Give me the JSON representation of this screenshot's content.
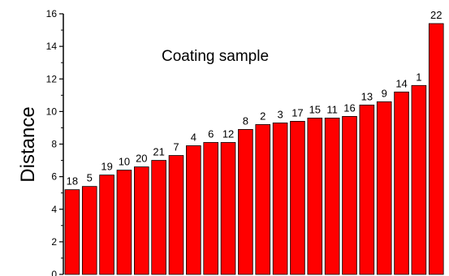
{
  "chart_data": {
    "type": "bar",
    "ylabel": "Distance",
    "xlabel": "",
    "annotation": "Coating sample",
    "ylim": [
      0,
      16
    ],
    "yticks": [
      "0",
      "2",
      "4",
      "6",
      "8",
      "10",
      "12",
      "14",
      "16"
    ],
    "bar_color": "#FF0000",
    "categories": [
      "18",
      "5",
      "19",
      "10",
      "20",
      "21",
      "7",
      "4",
      "6",
      "12",
      "8",
      "2",
      "3",
      "17",
      "15",
      "11",
      "16",
      "13",
      "9",
      "14",
      "1",
      "22"
    ],
    "values": [
      5.2,
      5.4,
      6.1,
      6.4,
      6.6,
      7.0,
      7.3,
      7.9,
      8.1,
      8.1,
      8.9,
      9.2,
      9.3,
      9.4,
      9.6,
      9.6,
      9.7,
      10.4,
      10.6,
      11.2,
      11.6,
      15.4
    ]
  }
}
